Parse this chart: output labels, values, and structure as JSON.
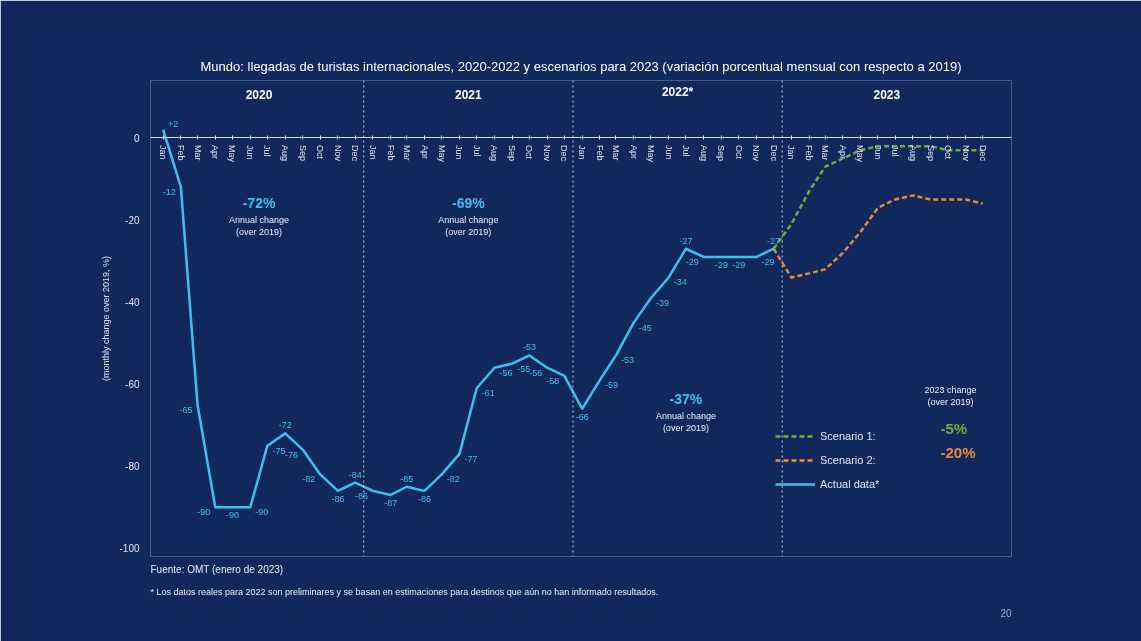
{
  "chart_data": {
    "type": "line",
    "title": "Mundo: llegadas de turistas internacionales, 2020-2022 y escenarios para 2023 (variación porcentual mensual con respecto a 2019)",
    "ylabel": "(monthly change over 2019, %)",
    "xlim": [
      "2019-12-10",
      "2024-01-20"
    ],
    "ylim": [
      -102,
      14
    ],
    "yticks": [
      0,
      -20,
      -40,
      -60,
      -80,
      -100
    ],
    "xticks": [
      {
        "value": "2020-01",
        "label": "Jan"
      },
      {
        "value": "2020-02",
        "label": "Feb"
      },
      {
        "value": "2020-03",
        "label": "Mar"
      },
      {
        "value": "2020-04",
        "label": "Apr"
      },
      {
        "value": "2020-05",
        "label": "May"
      },
      {
        "value": "2020-06",
        "label": "Jun"
      },
      {
        "value": "2020-07",
        "label": "Jul"
      },
      {
        "value": "2020-08",
        "label": "Aug"
      },
      {
        "value": "2020-09",
        "label": "Sep"
      },
      {
        "value": "2020-10",
        "label": "Oct"
      },
      {
        "value": "2020-11",
        "label": "Nov"
      },
      {
        "value": "2020-12",
        "label": "Dec"
      },
      {
        "value": "2021-01",
        "label": "Jan"
      },
      {
        "value": "2021-02",
        "label": "Feb"
      },
      {
        "value": "2021-03",
        "label": "Mar"
      },
      {
        "value": "2021-04",
        "label": "Apr"
      },
      {
        "value": "2021-05",
        "label": "May"
      },
      {
        "value": "2021-06",
        "label": "Jun"
      },
      {
        "value": "2021-07",
        "label": "Jul"
      },
      {
        "value": "2021-08",
        "label": "Aug"
      },
      {
        "value": "2021-09",
        "label": "Sep"
      },
      {
        "value": "2021-10",
        "label": "Oct"
      },
      {
        "value": "2021-11",
        "label": "Nov"
      },
      {
        "value": "2021-12",
        "label": "Dec"
      },
      {
        "value": "2022-01",
        "label": "Jan"
      },
      {
        "value": "2022-02",
        "label": "Feb"
      },
      {
        "value": "2022-03",
        "label": "Mar"
      },
      {
        "value": "2022-04",
        "label": "Apr"
      },
      {
        "value": "2022-05",
        "label": "May"
      },
      {
        "value": "2022-06",
        "label": "Jun"
      },
      {
        "value": "2022-07",
        "label": "Jul"
      },
      {
        "value": "2022-08",
        "label": "Aug"
      },
      {
        "value": "2022-09",
        "label": "Sep"
      },
      {
        "value": "2022-10",
        "label": "Oct"
      },
      {
        "value": "2022-11",
        "label": "Nov"
      },
      {
        "value": "2022-12",
        "label": "Dec"
      },
      {
        "value": "2023-01",
        "label": "Jan"
      },
      {
        "value": "2023-02",
        "label": "Feb"
      },
      {
        "value": "2023-03",
        "label": "Mar"
      },
      {
        "value": "2023-04",
        "label": "Apr"
      },
      {
        "value": "2023-05",
        "label": "May"
      },
      {
        "value": "2023-06",
        "label": "Jun"
      },
      {
        "value": "2023-07",
        "label": "Jul"
      },
      {
        "value": "2023-08",
        "label": "Aug"
      },
      {
        "value": "2023-09",
        "label": "Sep"
      },
      {
        "value": "2023-10",
        "label": "Oct"
      },
      {
        "value": "2023-11",
        "label": "Nov"
      },
      {
        "value": "2023-12",
        "label": "Dec"
      }
    ],
    "series": [
      {
        "name": "Scenario 1:",
        "color": "#6fae3e",
        "line_style": "dashed",
        "x": [
          "2022-12",
          "2023-01",
          "2023-02",
          "2023-03",
          "2023-04",
          "2023-05",
          "2023-06",
          "2023-07",
          "2023-08",
          "2023-09",
          "2023-10",
          "2023-11",
          "2023-12"
        ],
        "values": [
          -27,
          -21,
          -13,
          -7,
          -5,
          -3,
          -2,
          -2,
          -2,
          -2,
          -3,
          -3,
          -3
        ]
      },
      {
        "name": "Scenario 2:",
        "color": "#e58a3c",
        "line_style": "dashed",
        "x": [
          "2022-12",
          "2023-01",
          "2023-02",
          "2023-03",
          "2023-04",
          "2023-05",
          "2023-06",
          "2023-07",
          "2023-08",
          "2023-09",
          "2023-10",
          "2023-11",
          "2023-12"
        ],
        "values": [
          -27,
          -34,
          -33,
          -32,
          -28,
          -23,
          -17,
          -15,
          -14,
          -15,
          -15,
          -15,
          -16
        ]
      },
      {
        "name": "Actual data*",
        "color": "#3dbfef",
        "line_style": "solid",
        "x": [
          "2020-01",
          "2020-02",
          "2020-03",
          "2020-04",
          "2020-05",
          "2020-06",
          "2020-07",
          "2020-08",
          "2020-09",
          "2020-10",
          "2020-11",
          "2020-12",
          "2021-01",
          "2021-02",
          "2021-03",
          "2021-04",
          "2021-05",
          "2021-06",
          "2021-07",
          "2021-08",
          "2021-09",
          "2021-10",
          "2021-11",
          "2021-12",
          "2022-01",
          "2022-02",
          "2022-03",
          "2022-04",
          "2022-05",
          "2022-06",
          "2022-07",
          "2022-08",
          "2022-09",
          "2022-10",
          "2022-11",
          "2022-12"
        ],
        "values": [
          2,
          -12,
          -65,
          -90,
          -90,
          -90,
          -75,
          -72,
          -76,
          -82,
          -86,
          -84,
          -86,
          -87,
          -85,
          -86,
          -82,
          -77,
          -61,
          -56,
          -55,
          -53,
          -56,
          -58,
          -66,
          -59,
          -53,
          -45,
          -39,
          -34,
          -27,
          -29,
          -29,
          -29,
          -29,
          -27
        ],
        "value_labels": [
          "+2",
          "-12",
          "-65",
          "-90",
          "-90",
          "-90",
          "-75",
          "-72",
          "-76",
          "-82",
          "-86",
          "-84",
          "-86",
          "-87",
          "-85",
          "-86",
          "-82",
          "-77",
          "-61",
          "-56",
          "-55",
          "-53",
          "-56",
          "-58",
          "-66",
          "-59",
          "-53",
          "-45",
          "-39",
          "-34",
          "-27",
          "-29",
          "-29",
          "-29",
          "-29",
          "-27"
        ]
      }
    ],
    "ref_lines": [
      {
        "axis": "x",
        "value": "2020-12-16",
        "line_style": "dotted",
        "color": "#c8d0e0"
      },
      {
        "axis": "x",
        "value": "2021-12-16",
        "line_style": "dotted",
        "color": "#c8d0e0"
      },
      {
        "axis": "x",
        "value": "2022-12-16",
        "line_style": "dotted",
        "color": "#c8d0e0"
      }
    ],
    "legend": "right",
    "grid": false,
    "annotations": [
      "2020",
      "2021",
      "2022*",
      "2023",
      "-72%",
      "Annual change\n(over 2019)",
      "-69%",
      "Annual change\n(over 2019)",
      "-37%",
      "Annual change\n(over 2019)",
      "2023 change\n(over 2019)",
      "-5%",
      "-20%",
      "Fuente: OMT (enero de 2023)",
      "* Los datos reales para 2022 son preliminares y se basan en estimaciones para destinos que aún no han informado resultados.",
      "20"
    ]
  }
}
